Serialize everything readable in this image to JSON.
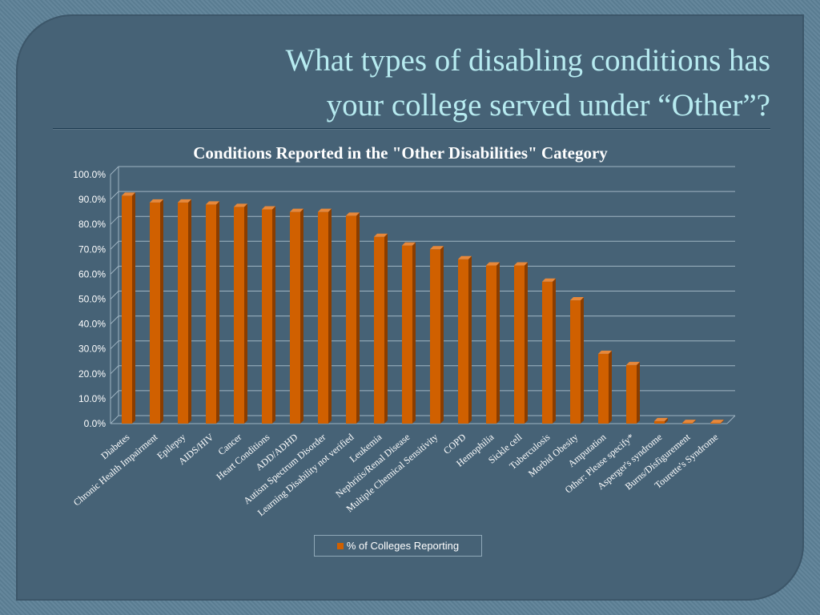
{
  "slide": {
    "title_line1": "What types of disabling conditions has",
    "title_line2": "your college served under “Other”?"
  },
  "colors": {
    "bar_front": "#d06000",
    "bar_side": "#8a3d00",
    "bar_top": "#e8883a",
    "gridline": "#9fb4c2",
    "text": "#ffffff"
  },
  "chart_data": {
    "type": "bar",
    "title": "Conditions Reported in the \"Other Disabilities\" Category",
    "xlabel": "",
    "ylabel": "",
    "ylim": [
      0,
      100
    ],
    "y_tick_step": 10,
    "y_tick_format": "percent-1-decimal",
    "grid": true,
    "legend_position": "bottom",
    "categories": [
      "Diabetes",
      "Chronic Health Impairment",
      "Epilepsy",
      "AIDS/HIV",
      "Cancer",
      "Heart Conditions",
      "ADD/ADHD",
      "Autism Spectrum Disorder",
      "Learning Disability not verified",
      "Leukemia",
      "Nephritis/Renal Disease",
      "Multiple Chemical Sensitivity",
      "COPD",
      "Hemophilia",
      "Sickle cell",
      "Tuberculosis",
      "Morbid Obesity",
      "Amputation",
      "Other: Please specify*",
      "Asperger's syndrome",
      "Burns/Disfigurement",
      "Tourette's Syndrome"
    ],
    "series": [
      {
        "name": "% of Colleges Reporting",
        "values": [
          91.5,
          88.8,
          88.8,
          88.0,
          87.0,
          86.0,
          85.0,
          85.0,
          83.5,
          75.0,
          71.5,
          70.0,
          66.0,
          63.5,
          63.5,
          57.0,
          49.5,
          28.0,
          23.5,
          1.0,
          0.3,
          0.3
        ]
      }
    ]
  }
}
